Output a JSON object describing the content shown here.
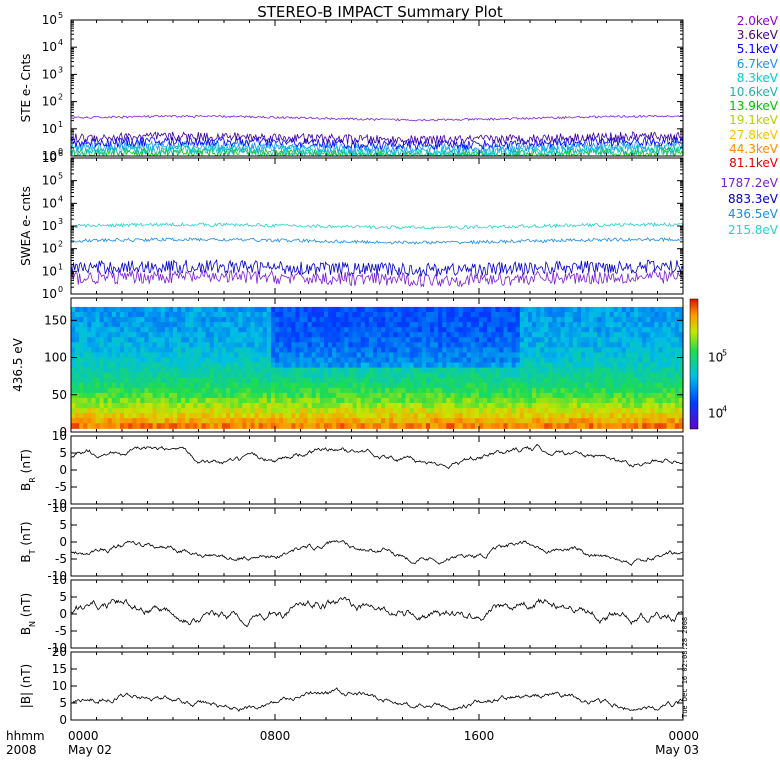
{
  "title": "STEREO-B IMPACT Summary Plot",
  "corner_labels": {
    "top": "hhmm",
    "bottom": "2008"
  },
  "time_axis": {
    "ticks": [
      {
        "label": "0000",
        "sub": "May 02"
      },
      {
        "label": "0800",
        "sub": ""
      },
      {
        "label": "1600",
        "sub": ""
      },
      {
        "label": "0000",
        "sub": "May 03"
      }
    ]
  },
  "ste_legend": [
    {
      "label": "2.0keV",
      "color": "#9400d3"
    },
    {
      "label": "3.6keV",
      "color": "#4b0082"
    },
    {
      "label": "5.1keV",
      "color": "#0000ff"
    },
    {
      "label": "6.7keV",
      "color": "#1e90ff"
    },
    {
      "label": "8.3keV",
      "color": "#00ced1"
    },
    {
      "label": "10.6keV",
      "color": "#20b2aa"
    },
    {
      "label": "13.9keV",
      "color": "#00c000"
    },
    {
      "label": "19.1keV",
      "color": "#b8d000"
    },
    {
      "label": "27.8keV",
      "color": "#ffc000"
    },
    {
      "label": "44.3keV",
      "color": "#ff8c00"
    },
    {
      "label": "81.1keV",
      "color": "#e00000"
    }
  ],
  "swea_legend": [
    {
      "label": "1787.2eV",
      "color": "#7a1ed6"
    },
    {
      "label": "883.3eV",
      "color": "#0000c8"
    },
    {
      "label": "436.5eV",
      "color": "#1e8ce6"
    },
    {
      "label": "215.8eV",
      "color": "#28d2c8"
    }
  ],
  "stamp": "Tue Dec 16 02:08:28 2008",
  "chart_data": [
    {
      "type": "line",
      "ylabel": "STE e- Cnts",
      "yscale": "log",
      "ylim": [
        1,
        100000
      ],
      "yticks": [
        "10^0",
        "10^1",
        "10^2",
        "10^3",
        "10^4",
        "10^5"
      ],
      "series": [
        {
          "name": "2.0keV",
          "level": 25
        },
        {
          "name": "3.6keV",
          "level": 4.5
        },
        {
          "name": "5.1keV",
          "level": 3
        },
        {
          "name": "6.7keV",
          "level": 2.2
        },
        {
          "name": "8.3keV",
          "level": 1.7
        },
        {
          "name": "10.6keV",
          "level": 1.4
        },
        {
          "name": "13.9keV",
          "level": 1.2
        }
      ]
    },
    {
      "type": "line",
      "ylabel": "SWEA e- cnts",
      "yscale": "log",
      "ylim": [
        1,
        1000000
      ],
      "yticks": [
        "10^0",
        "10^1",
        "10^2",
        "10^3",
        "10^4",
        "10^5",
        "10^6"
      ],
      "series": [
        {
          "name": "215.8eV",
          "level": 1000
        },
        {
          "name": "436.5eV",
          "level": 220
        },
        {
          "name": "883.3eV",
          "level": 14
        },
        {
          "name": "1787.2eV",
          "level": 5
        }
      ]
    },
    {
      "type": "heatmap",
      "ylabel": "436.5 eV",
      "ylim": [
        0,
        180
      ],
      "yticks": [
        0,
        50,
        100,
        150
      ],
      "colorbar_ticks": [
        "10^4",
        "10^5"
      ]
    },
    {
      "type": "line",
      "ylabel": "B_R (nT)",
      "ylim": [
        -10,
        10
      ],
      "yticks": [
        -10,
        -5,
        0,
        5,
        10
      ],
      "level": 4
    },
    {
      "type": "line",
      "ylabel": "B_T (nT)",
      "ylim": [
        -10,
        10
      ],
      "yticks": [
        -10,
        -5,
        0,
        5,
        10
      ],
      "level": -3
    },
    {
      "type": "line",
      "ylabel": "B_N (nT)",
      "ylim": [
        -10,
        10
      ],
      "yticks": [
        -10,
        -5,
        0,
        5,
        10
      ],
      "level": 1
    },
    {
      "type": "line",
      "ylabel": "|B| (nT)",
      "ylim": [
        0,
        20
      ],
      "yticks": [
        0,
        5,
        10,
        15,
        20
      ],
      "level": 5.5
    }
  ]
}
